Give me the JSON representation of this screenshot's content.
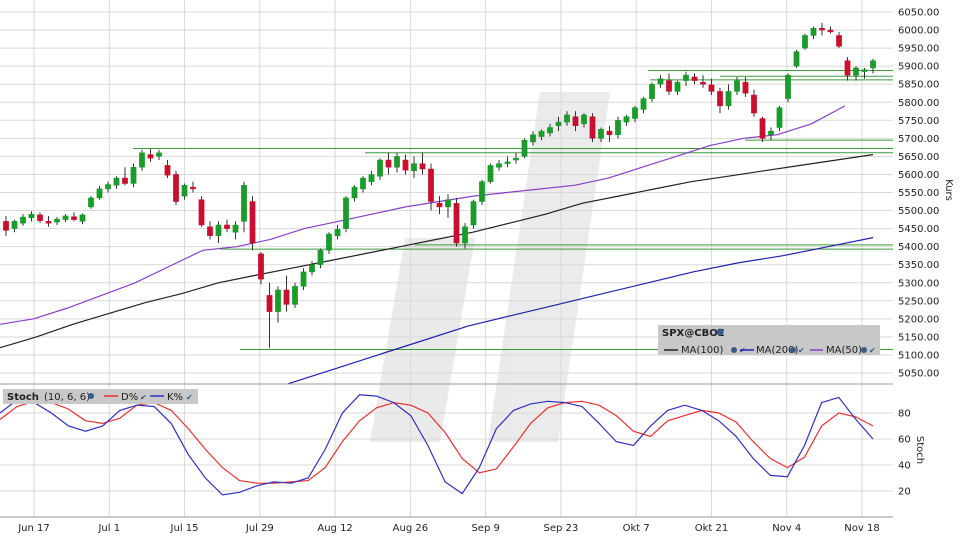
{
  "colors": {
    "up": "#1a9b2a",
    "down": "#c8102e",
    "ma100": "#222222",
    "ma200": "#2222aa",
    "ma50": "#8a3fc7",
    "support": "#3a9a3a",
    "grid": "#d9d9d9",
    "stochD": "#e83030",
    "stochK": "#3030c0",
    "legend_bg": "#c8c8c8"
  },
  "price_panel": {
    "ylabel": "Kurs",
    "ticks": [
      "6050.00",
      "6000.00",
      "5950.00",
      "5900.00",
      "5850.00",
      "5800.00",
      "5750.00",
      "5700.00",
      "5650.00",
      "5600.00",
      "5550.00",
      "5500.00",
      "5450.00",
      "5400.00",
      "5350.00",
      "5300.00",
      "5250.00",
      "5200.00",
      "5150.00",
      "5100.00",
      "5050.00"
    ],
    "legend": {
      "symbol": "SPX@CBOE",
      "ma100": "MA(100)",
      "ma200": "MA(200)",
      "ma50": "MA(50)"
    }
  },
  "stoch_panel": {
    "title": "Stoch",
    "params": "(10, 6, 6)",
    "d_label": "D%",
    "k_label": "K%",
    "ylabel": "Stoch",
    "ticks": [
      "80",
      "60",
      "40",
      "20"
    ]
  },
  "x_axis": {
    "labels": [
      "Jun 17",
      "Jul 1",
      "Jul 15",
      "Jul 29",
      "Aug 12",
      "Aug 26",
      "Sep 9",
      "Sep 23",
      "Okt 7",
      "Okt 21",
      "Nov 4",
      "Nov 18"
    ]
  },
  "chart_data": [
    {
      "type": "candlestick",
      "ylim": [
        5020,
        6075
      ],
      "candles": [
        [
          5470,
          5485,
          5430,
          5445
        ],
        [
          5450,
          5475,
          5440,
          5470
        ],
        [
          5465,
          5490,
          5458,
          5482
        ],
        [
          5480,
          5498,
          5470,
          5490
        ],
        [
          5488,
          5495,
          5465,
          5472
        ],
        [
          5470,
          5485,
          5455,
          5465
        ],
        [
          5468,
          5482,
          5460,
          5476
        ],
        [
          5475,
          5490,
          5468,
          5485
        ],
        [
          5483,
          5495,
          5470,
          5475
        ],
        [
          5470,
          5492,
          5462,
          5488
        ],
        [
          5510,
          5540,
          5505,
          5535
        ],
        [
          5535,
          5568,
          5530,
          5560
        ],
        [
          5560,
          5580,
          5550,
          5572
        ],
        [
          5570,
          5595,
          5560,
          5590
        ],
        [
          5590,
          5620,
          5570,
          5575
        ],
        [
          5575,
          5630,
          5565,
          5620
        ],
        [
          5620,
          5668,
          5610,
          5660
        ],
        [
          5655,
          5670,
          5635,
          5645
        ],
        [
          5650,
          5668,
          5640,
          5660
        ],
        [
          5625,
          5640,
          5590,
          5598
        ],
        [
          5600,
          5610,
          5515,
          5525
        ],
        [
          5540,
          5575,
          5530,
          5570
        ],
        [
          5565,
          5580,
          5550,
          5560
        ],
        [
          5530,
          5540,
          5455,
          5460
        ],
        [
          5455,
          5470,
          5420,
          5430
        ],
        [
          5430,
          5470,
          5410,
          5460
        ],
        [
          5460,
          5475,
          5440,
          5450
        ],
        [
          5440,
          5470,
          5420,
          5460
        ],
        [
          5470,
          5580,
          5440,
          5570
        ],
        [
          5525,
          5540,
          5390,
          5410
        ],
        [
          5380,
          5385,
          5295,
          5310
        ],
        [
          5265,
          5300,
          5120,
          5220
        ],
        [
          5220,
          5290,
          5190,
          5280
        ],
        [
          5280,
          5320,
          5220,
          5240
        ],
        [
          5240,
          5300,
          5230,
          5290
        ],
        [
          5290,
          5340,
          5280,
          5330
        ],
        [
          5330,
          5360,
          5320,
          5350
        ],
        [
          5350,
          5395,
          5340,
          5390
        ],
        [
          5390,
          5440,
          5380,
          5435
        ],
        [
          5430,
          5460,
          5420,
          5448
        ],
        [
          5450,
          5540,
          5440,
          5535
        ],
        [
          5535,
          5570,
          5525,
          5565
        ],
        [
          5560,
          5595,
          5550,
          5590
        ],
        [
          5580,
          5610,
          5570,
          5600
        ],
        [
          5595,
          5645,
          5585,
          5640
        ],
        [
          5640,
          5660,
          5600,
          5620
        ],
        [
          5620,
          5660,
          5605,
          5650
        ],
        [
          5640,
          5655,
          5600,
          5612
        ],
        [
          5610,
          5650,
          5590,
          5630
        ],
        [
          5630,
          5660,
          5600,
          5615
        ],
        [
          5615,
          5630,
          5500,
          5525
        ],
        [
          5520,
          5540,
          5490,
          5510
        ],
        [
          5510,
          5545,
          5480,
          5530
        ],
        [
          5520,
          5535,
          5400,
          5410
        ],
        [
          5410,
          5465,
          5395,
          5455
        ],
        [
          5460,
          5530,
          5450,
          5525
        ],
        [
          5525,
          5585,
          5515,
          5580
        ],
        [
          5580,
          5630,
          5575,
          5625
        ],
        [
          5620,
          5640,
          5610,
          5630
        ],
        [
          5630,
          5650,
          5620,
          5635
        ],
        [
          5640,
          5660,
          5630,
          5645
        ],
        [
          5650,
          5700,
          5645,
          5695
        ],
        [
          5690,
          5720,
          5680,
          5710
        ],
        [
          5705,
          5725,
          5695,
          5720
        ],
        [
          5715,
          5740,
          5705,
          5730
        ],
        [
          5735,
          5760,
          5720,
          5745
        ],
        [
          5745,
          5775,
          5735,
          5765
        ],
        [
          5760,
          5775,
          5720,
          5735
        ],
        [
          5740,
          5770,
          5730,
          5765
        ],
        [
          5760,
          5770,
          5690,
          5700
        ],
        [
          5700,
          5730,
          5690,
          5725
        ],
        [
          5720,
          5735,
          5690,
          5710
        ],
        [
          5710,
          5760,
          5700,
          5750
        ],
        [
          5745,
          5765,
          5735,
          5760
        ],
        [
          5755,
          5790,
          5745,
          5785
        ],
        [
          5780,
          5815,
          5770,
          5810
        ],
        [
          5810,
          5855,
          5800,
          5850
        ],
        [
          5850,
          5875,
          5840,
          5865
        ],
        [
          5860,
          5880,
          5820,
          5830
        ],
        [
          5830,
          5860,
          5820,
          5855
        ],
        [
          5860,
          5885,
          5845,
          5875
        ],
        [
          5870,
          5880,
          5850,
          5860
        ],
        [
          5855,
          5875,
          5840,
          5850
        ],
        [
          5848,
          5865,
          5820,
          5830
        ],
        [
          5830,
          5840,
          5770,
          5790
        ],
        [
          5790,
          5850,
          5780,
          5830
        ],
        [
          5830,
          5870,
          5820,
          5860
        ],
        [
          5855,
          5870,
          5815,
          5825
        ],
        [
          5820,
          5835,
          5760,
          5770
        ],
        [
          5755,
          5760,
          5690,
          5700
        ],
        [
          5710,
          5730,
          5695,
          5720
        ],
        [
          5730,
          5790,
          5720,
          5785
        ],
        [
          5810,
          5880,
          5800,
          5875
        ],
        [
          5900,
          5945,
          5895,
          5940
        ],
        [
          5950,
          5990,
          5945,
          5985
        ],
        [
          5985,
          6010,
          5975,
          6005
        ],
        [
          6005,
          6020,
          5985,
          6000
        ],
        [
          6000,
          6010,
          5990,
          5995
        ],
        [
          5985,
          5995,
          5950,
          5955
        ],
        [
          5915,
          5925,
          5860,
          5875
        ],
        [
          5875,
          5900,
          5860,
          5895
        ],
        [
          5885,
          5895,
          5865,
          5890
        ],
        [
          5895,
          5920,
          5880,
          5915
        ]
      ]
    },
    {
      "type": "line",
      "name": "MA(50)",
      "values": [
        5185,
        5200,
        5230,
        5265,
        5300,
        5345,
        5390,
        5400,
        5420,
        5450,
        5470,
        5490,
        5510,
        5525,
        5540,
        5550,
        5560,
        5570,
        5590,
        5620,
        5650,
        5680,
        5700,
        5710,
        5740,
        5790
      ]
    },
    {
      "type": "line",
      "name": "MA(100)",
      "values": [
        5120,
        5150,
        5185,
        5215,
        5245,
        5270,
        5300,
        5320,
        5340,
        5360,
        5380,
        5400,
        5420,
        5440,
        5465,
        5490,
        5520,
        5540,
        5560,
        5580,
        5595,
        5610,
        5625,
        5640,
        5655
      ]
    },
    {
      "type": "line",
      "name": "MA(200)",
      "values": [
        5020,
        5060,
        5100,
        5140,
        5180,
        5210,
        5240,
        5270,
        5300,
        5330,
        5355,
        5375,
        5400,
        5425
      ]
    },
    {
      "type": "line",
      "name": "D%",
      "ylim": [
        0,
        100
      ],
      "values": [
        75,
        85,
        89,
        88,
        83,
        74,
        72,
        76,
        86,
        88,
        82,
        68,
        52,
        38,
        28,
        26,
        26,
        27,
        28,
        38,
        58,
        74,
        84,
        88,
        86,
        80,
        65,
        45,
        34,
        37,
        54,
        72,
        84,
        88,
        89,
        86,
        78,
        66,
        62,
        74,
        78,
        82,
        80,
        73,
        58,
        45,
        38,
        46,
        70,
        80,
        77,
        70
      ]
    },
    {
      "type": "line",
      "name": "K%",
      "ylim": [
        0,
        100
      ],
      "values": [
        80,
        90,
        88,
        80,
        70,
        66,
        70,
        82,
        86,
        85,
        72,
        48,
        30,
        17,
        19,
        24,
        27,
        26,
        30,
        52,
        80,
        94,
        93,
        88,
        78,
        55,
        27,
        18,
        38,
        68,
        82,
        87,
        89,
        88,
        85,
        72,
        58,
        55,
        70,
        82,
        86,
        82,
        74,
        62,
        45,
        32,
        31,
        55,
        88,
        92,
        75,
        60
      ]
    }
  ]
}
